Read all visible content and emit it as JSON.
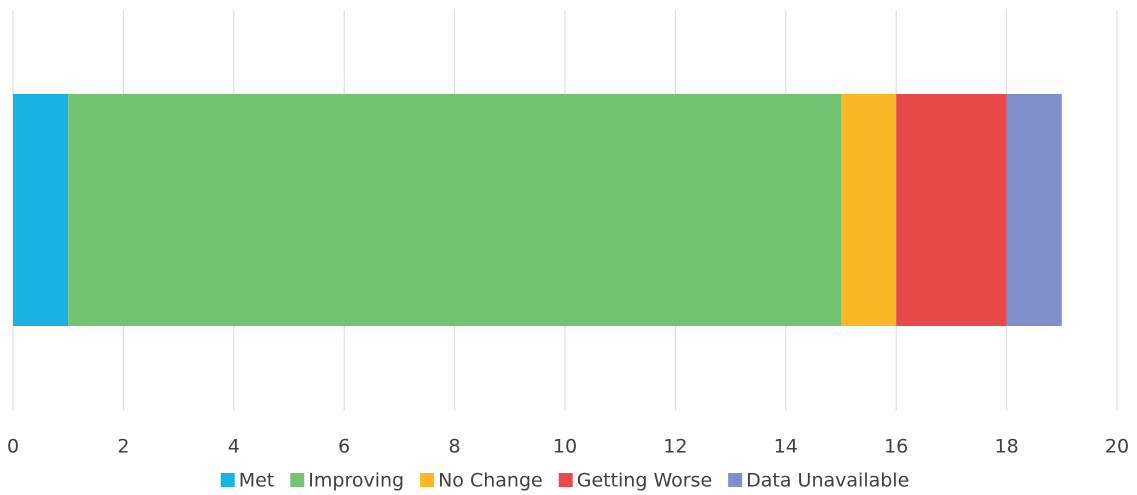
{
  "chart_data": {
    "type": "bar",
    "orientation": "horizontal",
    "stacked": true,
    "categories": [
      null
    ],
    "series": [
      {
        "name": "Met",
        "color": "#19b2e3",
        "values": [
          1
        ]
      },
      {
        "name": "Improving",
        "color": "#72c372",
        "values": [
          14
        ]
      },
      {
        "name": "No Change",
        "color": "#f8b825",
        "values": [
          1
        ]
      },
      {
        "name": "Getting Worse",
        "color": "#e84a4a",
        "values": [
          2
        ]
      },
      {
        "name": "Data Unavailable",
        "color": "#7f8fca",
        "values": [
          1
        ]
      }
    ],
    "xlim": [
      0,
      20
    ],
    "xticks": [
      0,
      2,
      4,
      6,
      8,
      10,
      12,
      14,
      16,
      18,
      20
    ],
    "grid": true,
    "legend": "bottom"
  }
}
